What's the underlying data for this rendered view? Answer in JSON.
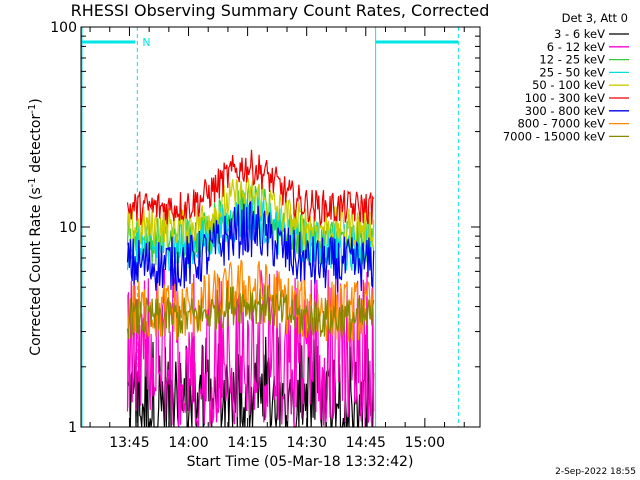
{
  "chart_data": {
    "type": "line",
    "title": "RHESSI Observing Summary Count Rates, Corrected",
    "xlabel": "Start Time (05-Mar-18 13:32:42)",
    "ylabel_main": "Corrected Count Rate (s",
    "ylabel_sup1": "-1",
    "ylabel_mid": " detector",
    "ylabel_sup2": "-1",
    "ylabel_end": ")",
    "x_ticks": [
      "13:45",
      "14:00",
      "14:15",
      "14:30",
      "14:45",
      "15:00"
    ],
    "x_tick_minutes": [
      45,
      60,
      75,
      90,
      105,
      120
    ],
    "y_ticks": [
      "1",
      "10",
      "100"
    ],
    "y_tick_values": [
      1,
      10,
      100
    ],
    "y_scale": "log",
    "ylim": [
      1,
      100
    ],
    "xlim_minutes": [
      32.7,
      134
    ],
    "legend_header": "Det 3, Att 0",
    "legend_position": "top-right",
    "flag_label": "N",
    "flag_color": "#00e5e5",
    "timestamp": "2-Sep-2022 18:55",
    "series": [
      {
        "name": "3 - 6 keV",
        "color": "#000000",
        "t_start": 44.5,
        "t_end": 107,
        "level": 1.3,
        "spread": 1.0,
        "mid": 60,
        "hump": 0
      },
      {
        "name": "6 - 12 keV",
        "color": "#ff00cc",
        "t_start": 44.5,
        "t_end": 107,
        "level": 2.5,
        "spread": 1.2,
        "mid": 60,
        "hump": 0
      },
      {
        "name": "12 - 25 keV",
        "color": "#33cc33",
        "t_start": 44.5,
        "t_end": 107,
        "level": 8.5,
        "spread": 0.35,
        "mid": 75,
        "hump": 0.5
      },
      {
        "name": "25 - 50 keV",
        "color": "#00dddd",
        "t_start": 44.5,
        "t_end": 107,
        "level": 8.0,
        "spread": 0.35,
        "mid": 75,
        "hump": 0.4
      },
      {
        "name": "50 - 100 keV",
        "color": "#cccc00",
        "t_start": 44.5,
        "t_end": 107,
        "level": 10.0,
        "spread": 0.3,
        "mid": 75,
        "hump": 0.45
      },
      {
        "name": "100 - 300 keV",
        "color": "#ee0000",
        "t_start": 44.5,
        "t_end": 107,
        "level": 12.5,
        "spread": 0.25,
        "mid": 75,
        "hump": 0.6
      },
      {
        "name": "300 - 800 keV",
        "color": "#0000ee",
        "t_start": 44.5,
        "t_end": 107,
        "level": 6.5,
        "spread": 0.4,
        "mid": 75,
        "hump": 0.5
      },
      {
        "name": "800 - 7000 keV",
        "color": "#ff8800",
        "t_start": 44.5,
        "t_end": 107,
        "level": 3.8,
        "spread": 0.45,
        "mid": 75,
        "hump": 0.3
      },
      {
        "name": "7000 - 15000 keV",
        "color": "#888800",
        "t_start": 44.5,
        "t_end": 107,
        "level": 3.5,
        "spread": 0.3,
        "mid": 75,
        "hump": 0.2
      }
    ]
  }
}
